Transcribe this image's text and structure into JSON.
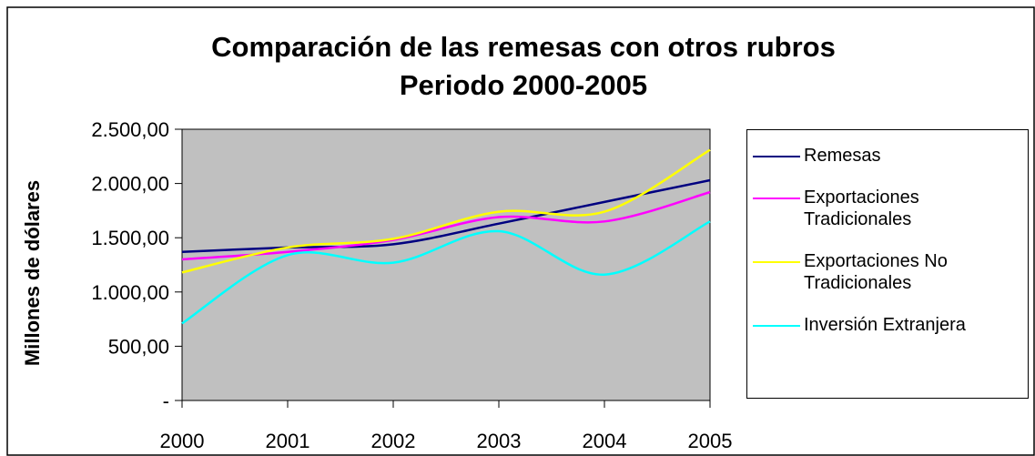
{
  "chart_data": {
    "type": "line",
    "title_lines": [
      "Comparación de las remesas con otros rubros",
      "Periodo 2000-2005"
    ],
    "ylabel": "Millones de dólares",
    "categories": [
      "2000",
      "2001",
      "2002",
      "2003",
      "2004",
      "2005"
    ],
    "ylim": [
      0,
      2500
    ],
    "yticks": [
      {
        "value": 0,
        "label": "-"
      },
      {
        "value": 500,
        "label": "500,00"
      },
      {
        "value": 1000,
        "label": "1.000,00"
      },
      {
        "value": 1500,
        "label": "1.500,00"
      },
      {
        "value": 2000,
        "label": "2.000,00"
      },
      {
        "value": 2500,
        "label": "2.500,00"
      }
    ],
    "smooth": true,
    "series": [
      {
        "name": "Remesas",
        "color": "#000080",
        "values": [
          1370,
          1410,
          1440,
          1630,
          1830,
          2030
        ]
      },
      {
        "name": "Exportaciones Tradicionales",
        "color": "#ff00ff",
        "values": [
          1300,
          1370,
          1480,
          1690,
          1650,
          1920
        ]
      },
      {
        "name": "Exportaciones No Tradicionales",
        "color": "#ffff00",
        "values": [
          1180,
          1410,
          1490,
          1740,
          1740,
          2310
        ]
      },
      {
        "name": "Inversión Extranjera",
        "color": "#00ffff",
        "values": [
          710,
          1340,
          1270,
          1560,
          1160,
          1650
        ]
      }
    ]
  }
}
